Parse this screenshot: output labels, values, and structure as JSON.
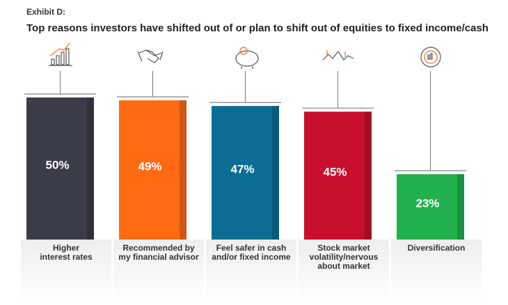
{
  "chart_data": {
    "type": "bar",
    "title": "Exhibit D:",
    "subtitle": "Top reasons investors have shifted out of or plan to shift out of equities to fixed income/cash",
    "categories": [
      "Higher\ninterest rates",
      "Recommended by\nmy financial advisor",
      "Feel safer in cash\nand/or fixed income",
      "Stock market\nvolatility/nervous\nabout market",
      "Diversification"
    ],
    "values": [
      50,
      49,
      47,
      45,
      23
    ],
    "value_labels": [
      "50%",
      "49%",
      "47%",
      "45%",
      "23%"
    ],
    "colors": [
      "#3a3d48",
      "#ff6a13",
      "#0b6d94",
      "#c8102e",
      "#22b14c"
    ]
  }
}
